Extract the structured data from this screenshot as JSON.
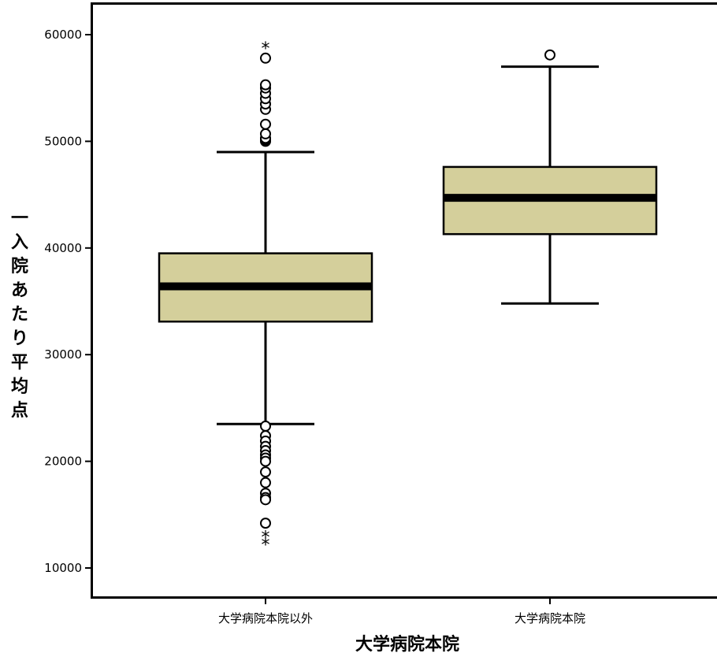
{
  "chart_data": {
    "type": "boxplot",
    "xlabel": "大学病院本院",
    "ylabel": "一入院あたり平均点",
    "ylim": [
      10000,
      60000
    ],
    "yticks": [
      10000,
      20000,
      30000,
      40000,
      50000,
      60000
    ],
    "grid": false,
    "box_color": "#d4cf9b",
    "categories": [
      "大学病院本院以外",
      "大学病院本院"
    ],
    "boxes": [
      {
        "category": "大学病院本院以外",
        "whisker_low": 23500,
        "q1": 33100,
        "median": 36400,
        "q3": 39500,
        "whisker_high": 49000,
        "outliers": [
          50000,
          50100,
          50200,
          50300,
          50700,
          51600,
          53000,
          53500,
          54000,
          54500,
          55000,
          55300,
          57800,
          23300,
          22400,
          21900,
          21400,
          21000,
          20600,
          20300,
          20000,
          19000,
          18000,
          17000,
          16600,
          16400,
          14200
        ],
        "extremes": [
          58800,
          13000,
          12300
        ]
      },
      {
        "category": "大学病院本院",
        "whisker_low": 34800,
        "q1": 41300,
        "median": 44700,
        "q3": 47600,
        "whisker_high": 57000,
        "outliers": [
          58100
        ],
        "extremes": []
      }
    ]
  }
}
